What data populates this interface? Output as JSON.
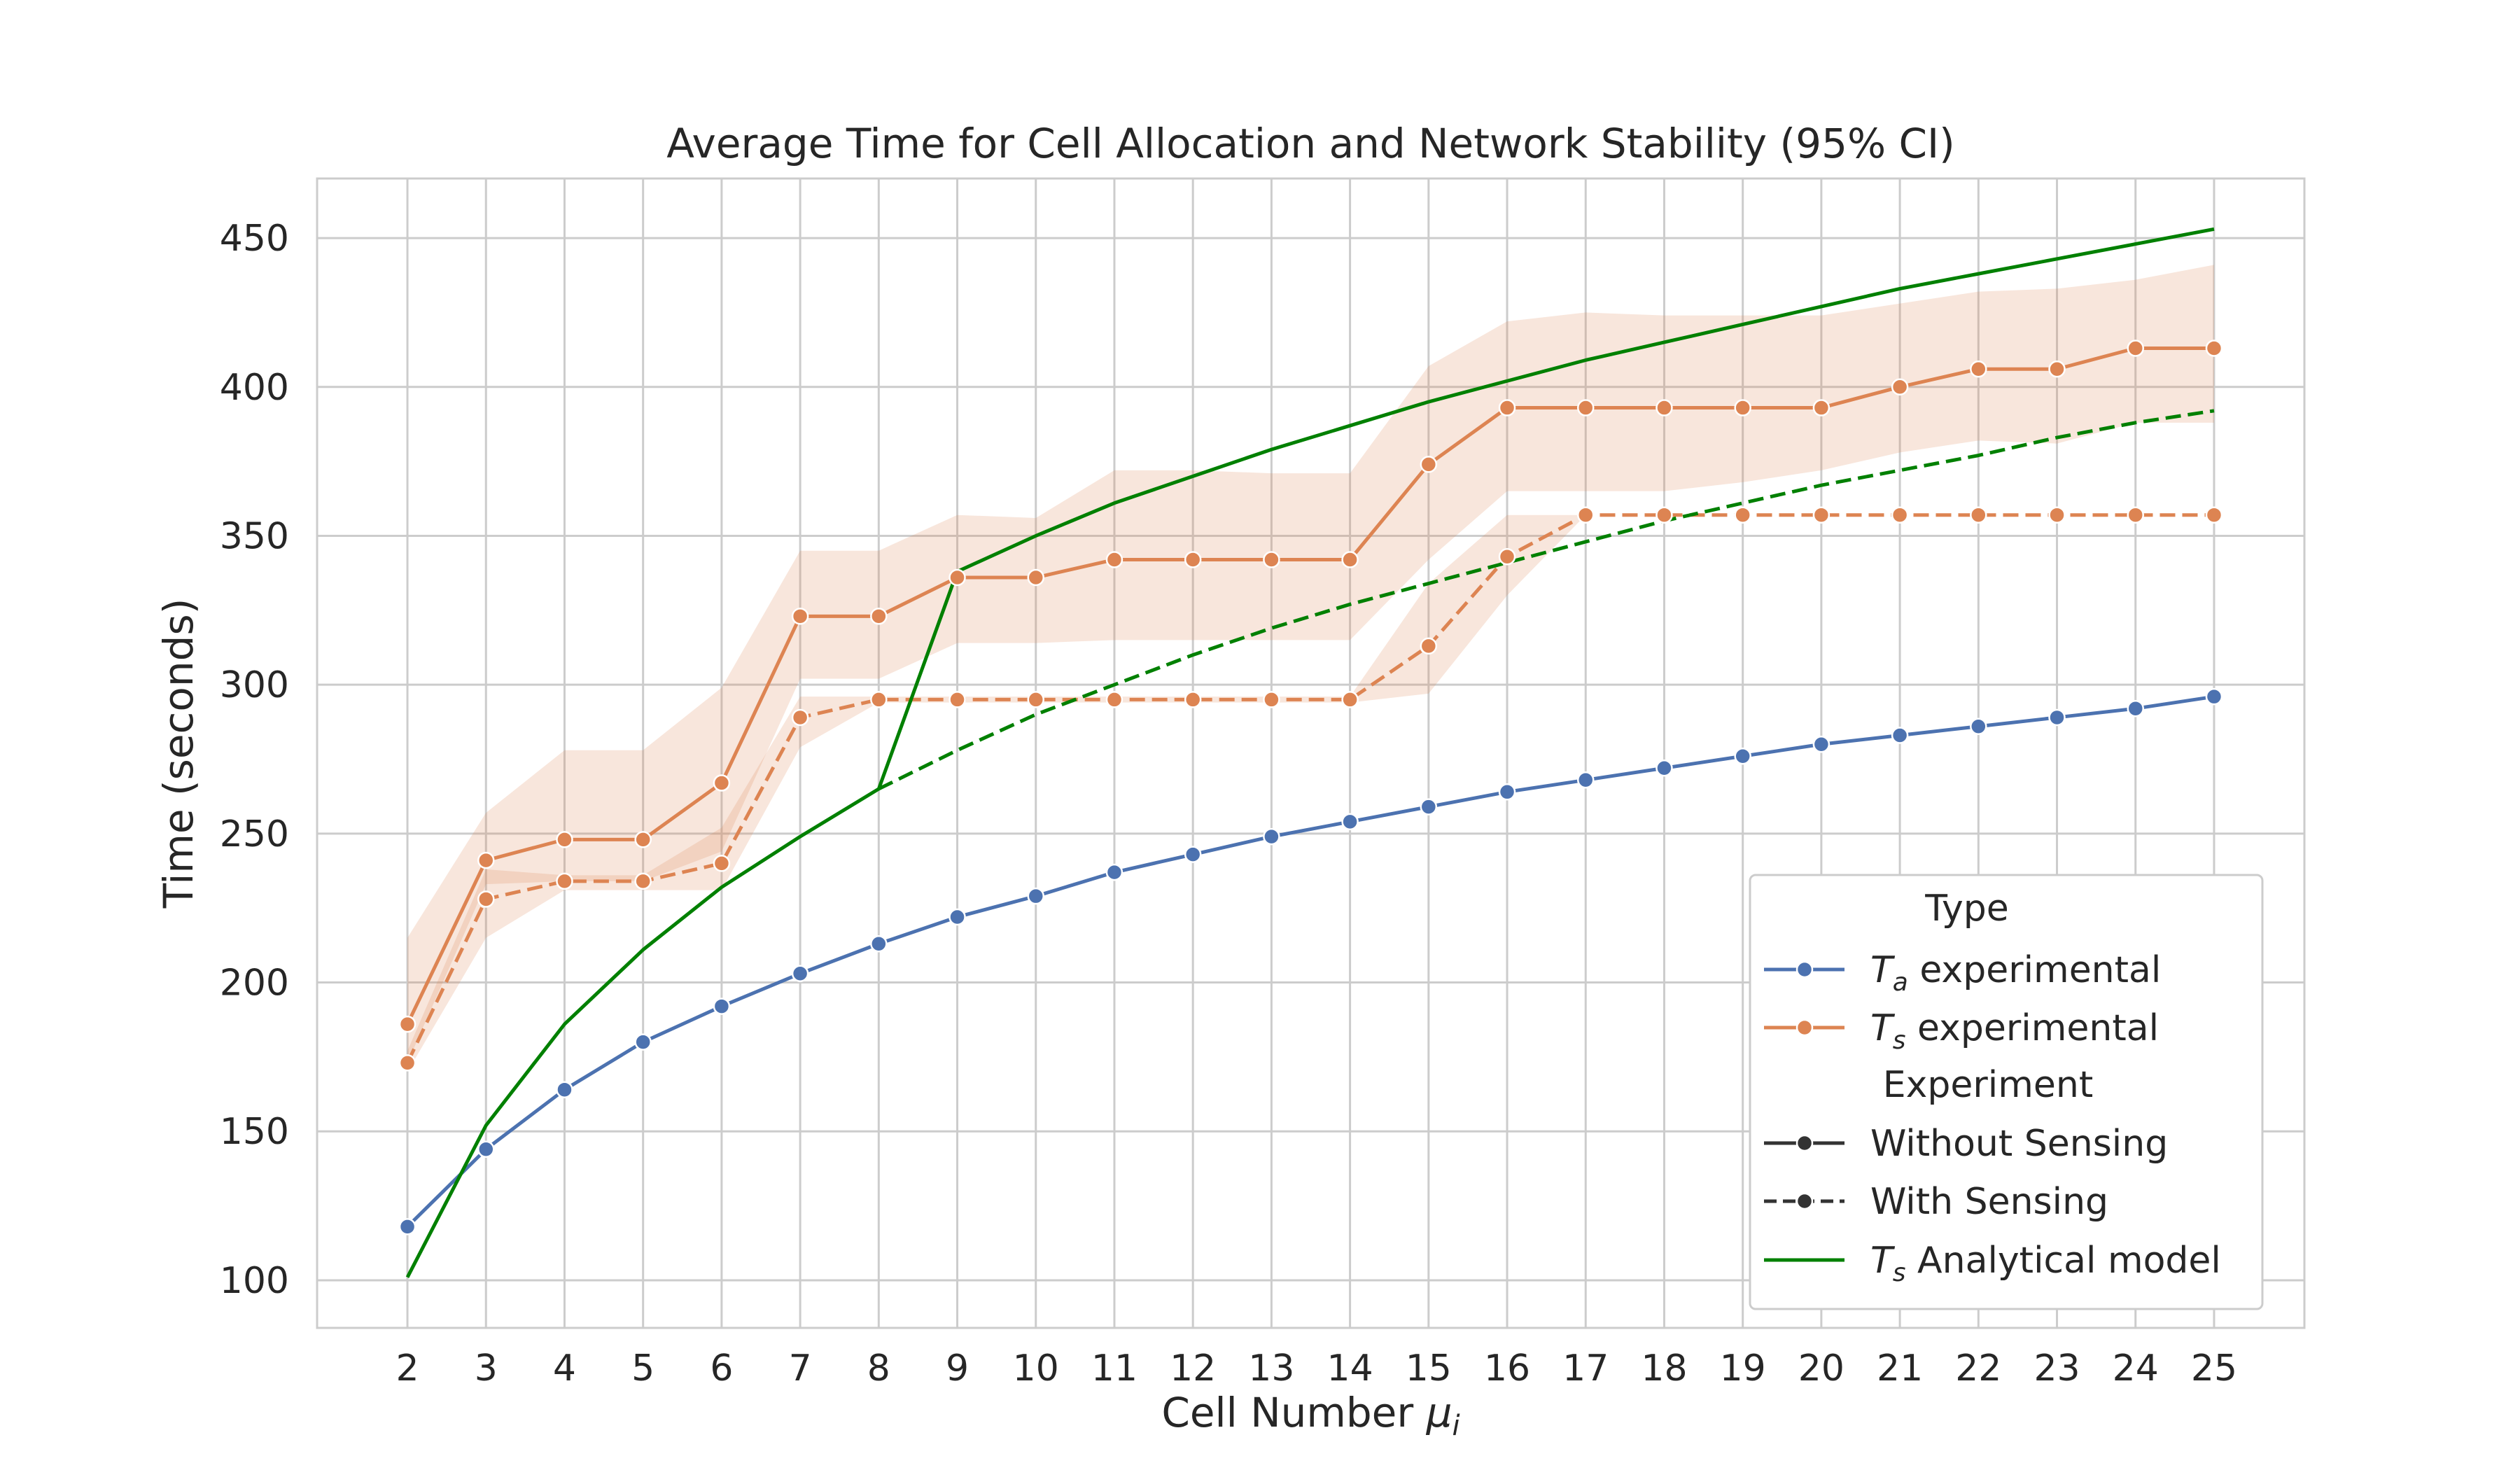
{
  "chart_data": {
    "type": "line",
    "title": "Average Time for Cell Allocation and Network Stability (95% CI)",
    "xlabel": "Cell Number μi",
    "xlabel_main": "Cell Number ",
    "xlabel_symbol": "μ",
    "xlabel_sub": "i",
    "ylabel": "Time (seconds)",
    "xlim": [
      0.85,
      26.15
    ],
    "ylim": [
      84,
      470
    ],
    "xticks": [
      2,
      3,
      4,
      5,
      6,
      7,
      8,
      9,
      10,
      11,
      12,
      13,
      14,
      15,
      16,
      17,
      18,
      19,
      20,
      21,
      22,
      23,
      24,
      25
    ],
    "yticks": [
      100,
      150,
      200,
      250,
      300,
      350,
      400,
      450
    ],
    "grid": true,
    "x": [
      2,
      3,
      4,
      5,
      6,
      7,
      8,
      9,
      10,
      11,
      12,
      13,
      14,
      15,
      16,
      17,
      18,
      19,
      20,
      21,
      22,
      23,
      24,
      25
    ],
    "series": [
      {
        "key": "ta_without",
        "color": "#4c72b0",
        "dash": "solid",
        "marker": true,
        "values": [
          118,
          144,
          164,
          180,
          192,
          203,
          213,
          222,
          229,
          237,
          243,
          249,
          254,
          259,
          264,
          268,
          272,
          276,
          280,
          283,
          286,
          289,
          292,
          296
        ]
      },
      {
        "key": "ts_without",
        "color": "#dd8452",
        "dash": "solid",
        "marker": true,
        "values": [
          186,
          241,
          248,
          248,
          267,
          323,
          323,
          336,
          336,
          342,
          342,
          342,
          342,
          374,
          393,
          393,
          393,
          393,
          393,
          400,
          406,
          406,
          413,
          413
        ],
        "ci_lower": [
          173,
          233,
          234,
          234,
          244,
          302,
          302,
          314,
          314,
          315,
          315,
          315,
          315,
          342,
          365,
          365,
          365,
          368,
          372,
          378,
          382,
          381,
          388,
          388
        ],
        "ci_upper": [
          215,
          257,
          278,
          278,
          299,
          345,
          345,
          357,
          356,
          372,
          372,
          371,
          371,
          407,
          422,
          425,
          424,
          424,
          424,
          428,
          432,
          433,
          436,
          441
        ]
      },
      {
        "key": "ts_with",
        "color": "#dd8452",
        "dash": "dashed",
        "marker": true,
        "values": [
          173,
          228,
          234,
          234,
          240,
          289,
          295,
          295,
          295,
          295,
          295,
          295,
          295,
          313,
          343,
          357,
          357,
          357,
          357,
          357,
          357,
          357,
          357,
          357
        ],
        "ci_lower": [
          170,
          215,
          231,
          231,
          231,
          279,
          294,
          294,
          294,
          294,
          294,
          294,
          294,
          297,
          330,
          357,
          357,
          357,
          357,
          357,
          357,
          357,
          357,
          357
        ],
        "ci_upper": [
          177,
          238,
          236,
          236,
          252,
          296,
          296,
          296,
          296,
          296,
          296,
          296,
          296,
          334,
          357,
          357,
          357,
          357,
          357,
          357,
          357,
          357,
          357,
          357
        ]
      },
      {
        "key": "analytical_without",
        "color": "#008000",
        "dash": "solid",
        "marker": false,
        "x": [
          2,
          3,
          4,
          5,
          6,
          7,
          8,
          9,
          10,
          11,
          12,
          13,
          14,
          15,
          16,
          17,
          18,
          19,
          20,
          21,
          22,
          23,
          24,
          25
        ],
        "values": [
          101,
          152,
          186,
          211,
          232,
          249,
          265,
          338,
          350,
          361,
          370,
          379,
          387,
          395,
          402,
          409,
          415,
          421,
          427,
          433,
          438,
          443,
          448,
          453
        ]
      },
      {
        "key": "analytical_with",
        "color": "#008000",
        "dash": "dashed",
        "marker": false,
        "x": [
          8,
          9,
          10,
          11,
          12,
          13,
          14,
          15,
          16,
          17,
          18,
          19,
          20,
          21,
          22,
          23,
          24,
          25
        ],
        "values": [
          265,
          278,
          290,
          300,
          310,
          319,
          327,
          334,
          341,
          348,
          355,
          361,
          367,
          372,
          377,
          383,
          388,
          392
        ]
      }
    ],
    "legend": {
      "position": "lower right",
      "title_type": "Type",
      "title_experiment": "Experiment",
      "entries": [
        {
          "key": "ta",
          "symbol": "T",
          "sub": "a",
          "text": " experimental",
          "color": "#4c72b0",
          "dash": "solid",
          "marker": true
        },
        {
          "key": "ts",
          "symbol": "T",
          "sub": "s",
          "text": " experimental",
          "color": "#dd8452",
          "dash": "solid",
          "marker": true
        },
        {
          "key": "without",
          "symbol": "",
          "sub": "",
          "text": "Without Sensing",
          "color": "#333333",
          "dash": "solid",
          "marker": true
        },
        {
          "key": "with",
          "symbol": "",
          "sub": "",
          "text": "With Sensing",
          "color": "#333333",
          "dash": "dashed",
          "marker": true
        },
        {
          "key": "analytical",
          "symbol": "T",
          "sub": "s",
          "text": " Analytical model",
          "color": "#008000",
          "dash": "solid",
          "marker": false
        }
      ]
    }
  }
}
